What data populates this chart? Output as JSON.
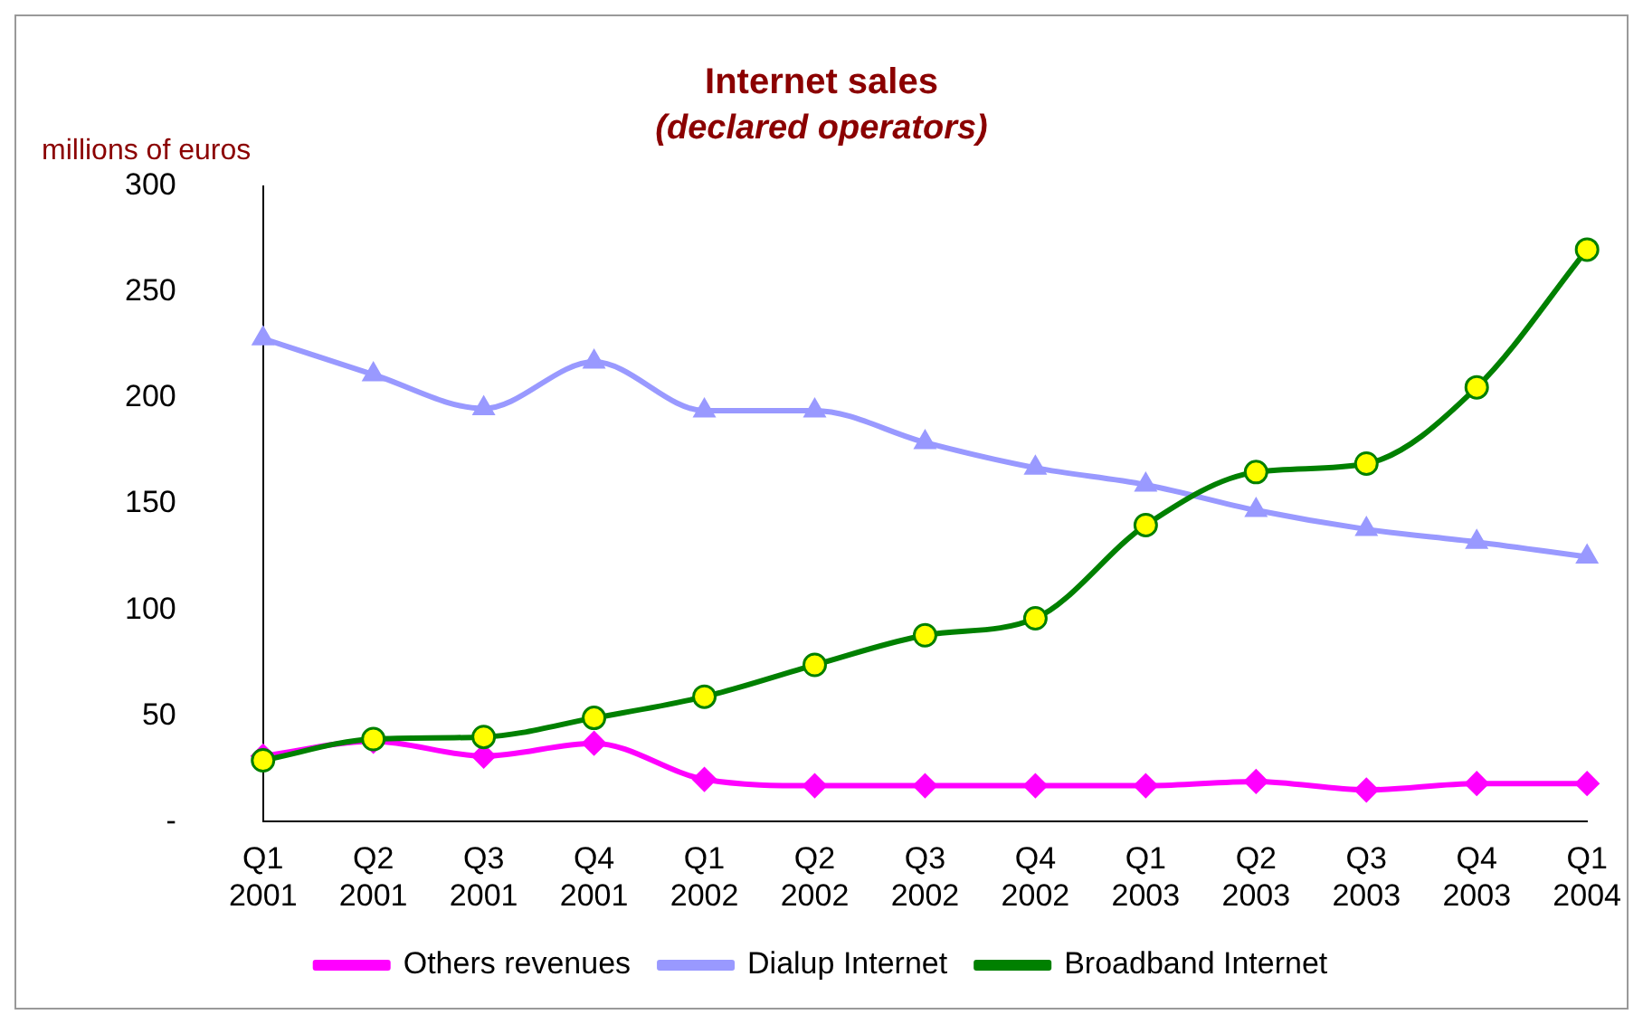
{
  "chart_data": {
    "type": "line",
    "title": "Internet sales",
    "subtitle": "(declared operators)",
    "ylabel": "millions of euros",
    "categories": [
      "Q1\n2001",
      "Q2\n2001",
      "Q3\n2001",
      "Q4\n2001",
      "Q1\n2002",
      "Q2\n2002",
      "Q3\n2002",
      "Q4\n2002",
      "Q1\n2003",
      "Q2\n2003",
      "Q3\n2003",
      "Q4\n2003",
      "Q1\n2004"
    ],
    "series": [
      {
        "name": "Others revenues",
        "color": "#ff00ff",
        "marker": "diamond",
        "values": [
          31,
          38,
          31,
          37,
          20,
          17,
          17,
          17,
          17,
          19,
          15,
          18,
          18
        ]
      },
      {
        "name": "Dialup Internet",
        "color": "#9999ff",
        "marker": "triangle",
        "values": [
          228,
          211,
          195,
          217,
          194,
          194,
          179,
          167,
          159,
          147,
          138,
          132,
          125
        ]
      },
      {
        "name": "Broadband Internet",
        "color": "#008000",
        "marker": "circle",
        "values": [
          29,
          39,
          40,
          49,
          59,
          74,
          88,
          96,
          140,
          165,
          169,
          205,
          270
        ]
      }
    ],
    "ylim": [
      0,
      300
    ],
    "yticks": [
      {
        "value": 0,
        "label": "-"
      },
      50,
      100,
      150,
      200,
      250,
      300
    ],
    "grid": false,
    "legend": "bottom"
  }
}
